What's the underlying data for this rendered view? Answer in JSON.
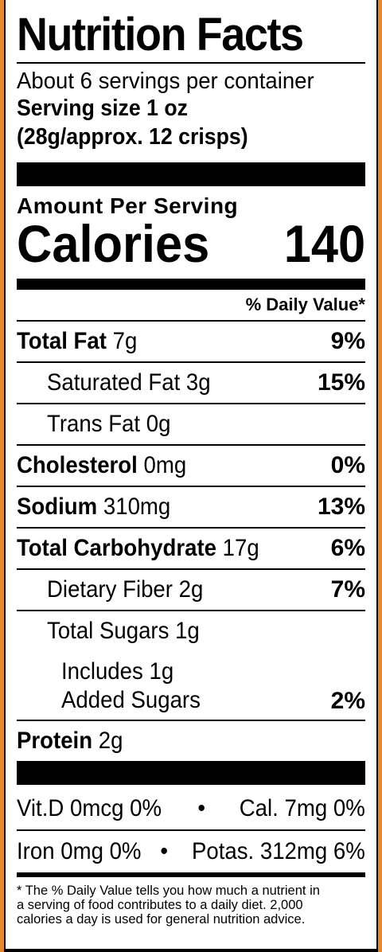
{
  "title": "Nutrition Facts",
  "servings_per_container": "About 6 servings per container",
  "serving_size_line1": "Serving size 1 oz",
  "serving_size_line2": "(28g/approx. 12 crisps)",
  "amount_per_serving": "Amount Per Serving",
  "calories_label": "Calories",
  "calories_value": "140",
  "daily_value_header": "% Daily Value*",
  "nutrients": [
    {
      "bold": "Total Fat",
      "amount": " 7g",
      "dv": "9%"
    },
    {
      "bold": "",
      "amount": "Saturated Fat 3g",
      "dv": "15%"
    },
    {
      "bold": "",
      "amount": "Trans Fat 0g",
      "dv": ""
    },
    {
      "bold": "Cholesterol",
      "amount": " 0mg",
      "dv": "0%"
    },
    {
      "bold": "Sodium",
      "amount": " 310mg",
      "dv": "13%"
    },
    {
      "bold": "Total Carbohydrate",
      "amount": " 17g",
      "dv": "6%"
    },
    {
      "bold": "",
      "amount": "Dietary Fiber 2g",
      "dv": "7%"
    },
    {
      "bold": "",
      "amount": "Total Sugars 1g",
      "dv": ""
    },
    {
      "bold": "",
      "amount": "Includes 1g",
      "amount2": "Added Sugars",
      "dv": "2%"
    },
    {
      "bold": "Protein",
      "amount": " 2g",
      "dv": ""
    }
  ],
  "vitamins": [
    {
      "left": "Vit.D 0mcg 0%",
      "sep": "•",
      "right": "Cal. 7mg 0%"
    },
    {
      "left": "Iron 0mg 0%",
      "sep": "•",
      "right": "Potas. 312mg 6%"
    }
  ],
  "footnote": [
    "* The % Daily Value tells you how much a nutrient in",
    "a serving of food contributes to a daily diet. 2,000",
    "calories a day is used for general nutrition advice."
  ]
}
